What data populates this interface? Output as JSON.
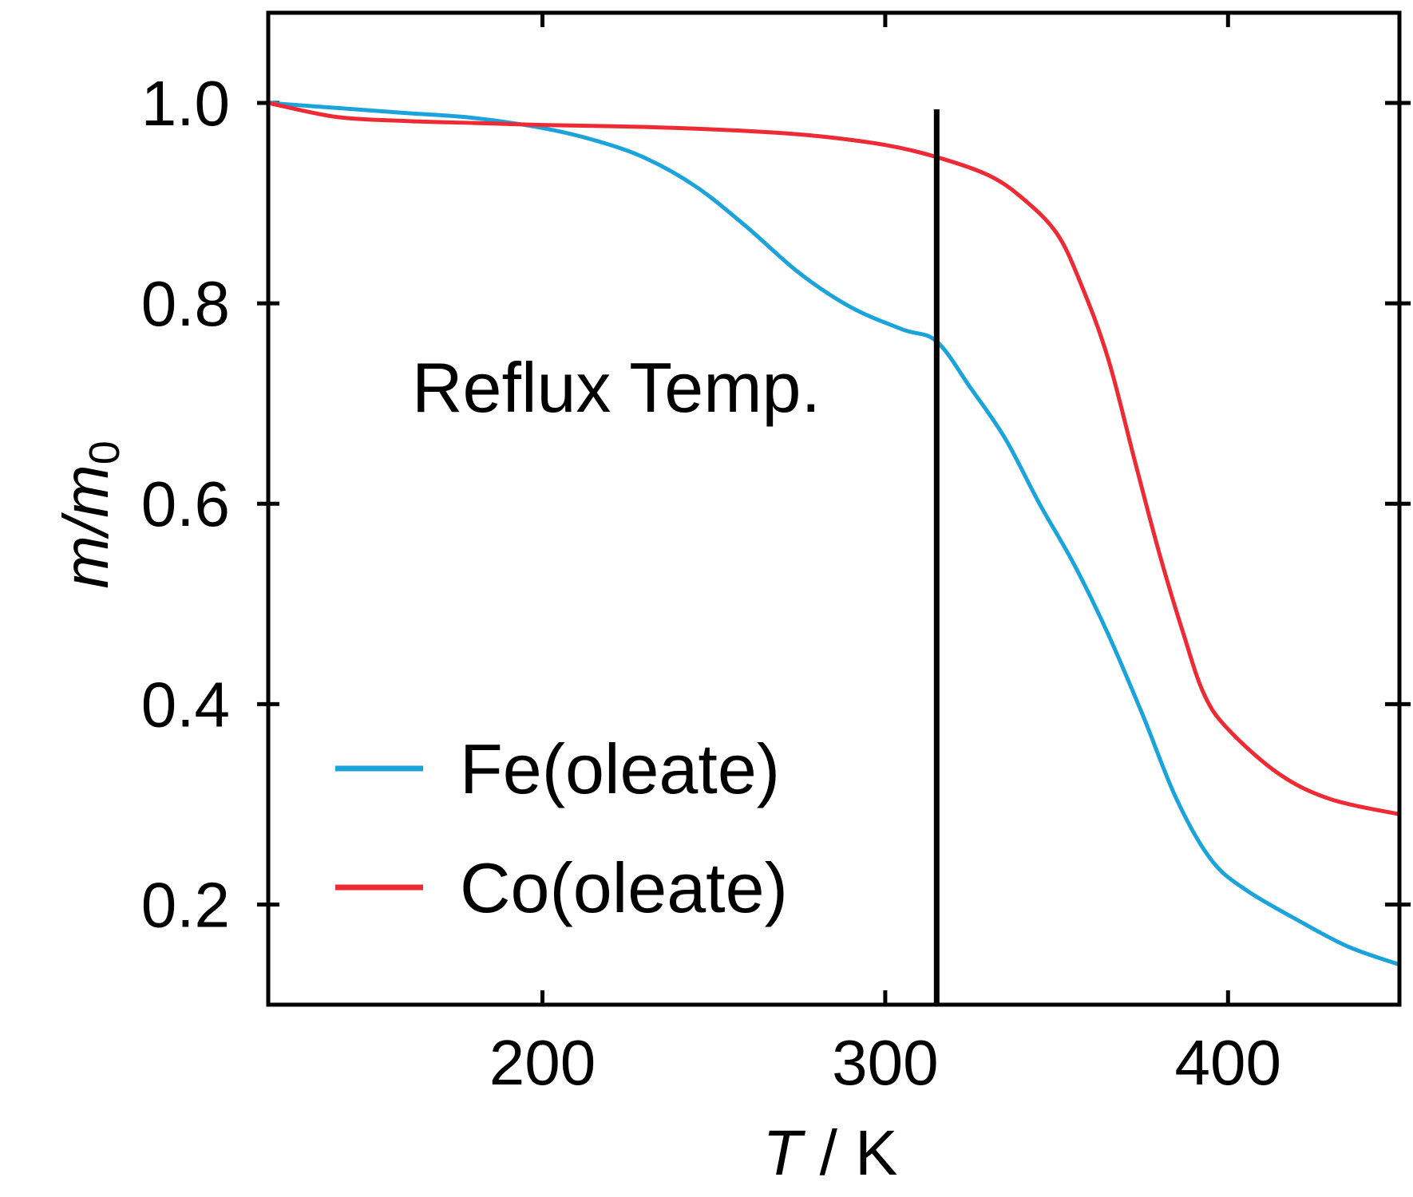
{
  "chart_data": {
    "type": "line",
    "xlabel_italic": "T",
    "xlabel_sep": " / ",
    "xlabel_unit": "K",
    "ylabel_main": "m/m",
    "ylabel_sub": "0",
    "xlim": [
      120,
      450
    ],
    "ylim": [
      0.1,
      1.09
    ],
    "xticks": [
      200,
      300,
      400
    ],
    "xtick_labels": [
      "200",
      "300",
      "400"
    ],
    "yticks": [
      0.2,
      0.4,
      0.6,
      0.8,
      1.0
    ],
    "ytick_labels": [
      "0.2",
      "0.4",
      "0.6",
      "0.8",
      "1.0"
    ],
    "legend_position": "lower-left",
    "annotation": {
      "text": "Reflux Temp.",
      "vline_x": 315
    },
    "series": [
      {
        "name": "Fe(oleate)",
        "color": "#1ba3dc",
        "x": [
          120,
          140,
          160,
          180,
          200,
          215,
          230,
          245,
          260,
          275,
          290,
          305,
          315,
          325,
          335,
          345,
          355,
          365,
          375,
          385,
          395,
          405,
          420,
          435,
          450
        ],
        "y": [
          1.0,
          0.995,
          0.99,
          0.985,
          0.975,
          0.963,
          0.945,
          0.916,
          0.875,
          0.83,
          0.796,
          0.774,
          0.762,
          0.715,
          0.665,
          0.6,
          0.54,
          0.47,
          0.39,
          0.305,
          0.245,
          0.215,
          0.185,
          0.158,
          0.14
        ]
      },
      {
        "name": "Co(oleate)",
        "color": "#ee2a35",
        "x": [
          120,
          140,
          160,
          180,
          200,
          230,
          260,
          280,
          300,
          315,
          330,
          340,
          350,
          357,
          365,
          373,
          380,
          387,
          393,
          400,
          415,
          430,
          450
        ],
        "y": [
          1.0,
          0.986,
          0.982,
          0.98,
          0.978,
          0.976,
          0.972,
          0.967,
          0.958,
          0.946,
          0.928,
          0.905,
          0.87,
          0.82,
          0.745,
          0.64,
          0.55,
          0.47,
          0.41,
          0.375,
          0.33,
          0.305,
          0.29
        ]
      }
    ]
  }
}
